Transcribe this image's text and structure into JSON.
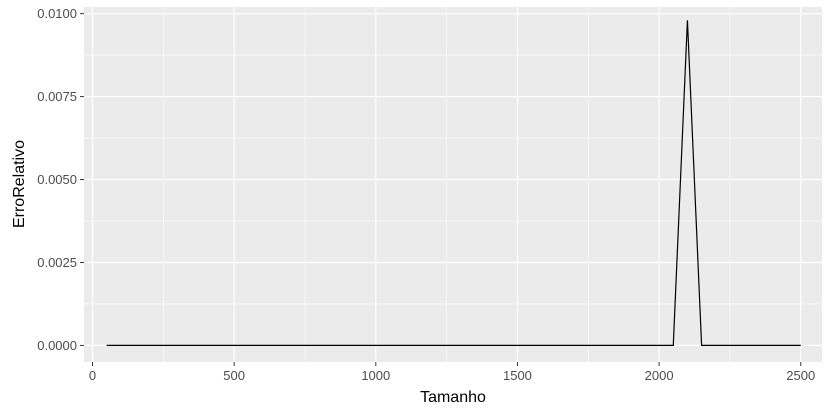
{
  "chart_data": {
    "type": "line",
    "xlabel": "Tamanho",
    "ylabel": "ErroRelativo",
    "xlim": [
      -30,
      2575
    ],
    "ylim": [
      -0.0005,
      0.0102
    ],
    "x_ticks": [
      0,
      500,
      1000,
      1500,
      2000,
      2500
    ],
    "x_tick_labels": [
      "0",
      "500",
      "1000",
      "1500",
      "2000",
      "2500"
    ],
    "y_ticks": [
      0,
      0.0025,
      0.005,
      0.0075,
      0.01
    ],
    "y_tick_labels": [
      "0.0000",
      "0.0025",
      "0.0050",
      "0.0075",
      "0.0100"
    ],
    "grid": true,
    "series": [
      {
        "color": "#000000",
        "points": [
          [
            50,
            0
          ],
          [
            2050,
            0
          ],
          [
            2100,
            0.0098
          ],
          [
            2150,
            0
          ],
          [
            2500,
            0
          ]
        ]
      }
    ]
  },
  "colors": {
    "panel_background": "#ebebeb",
    "grid_major": "#ffffff",
    "line": "#000000"
  }
}
